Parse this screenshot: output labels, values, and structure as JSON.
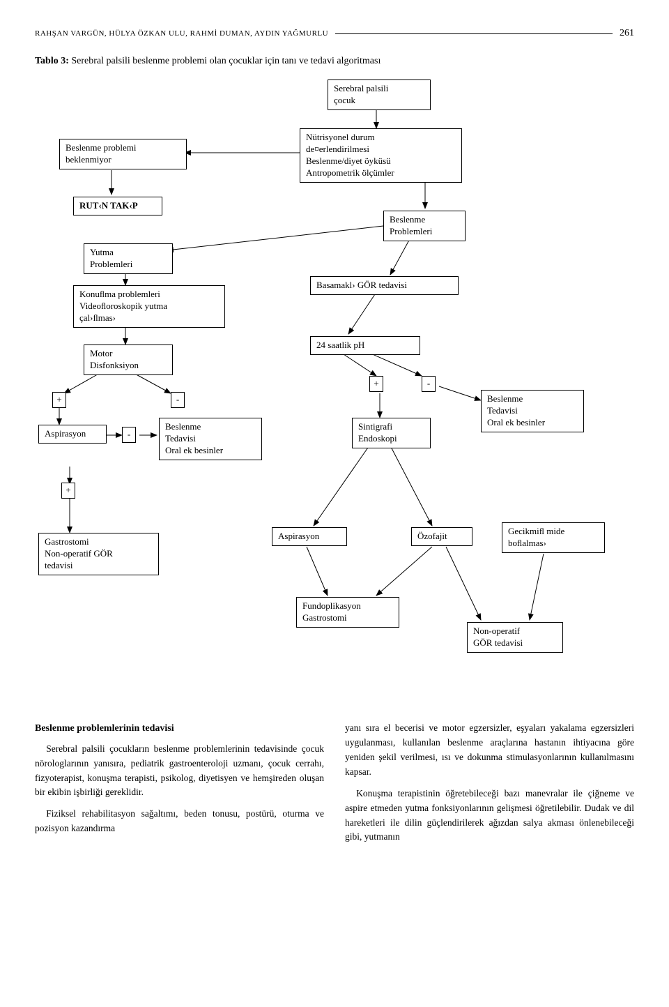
{
  "header": {
    "names": "RAHŞAN VARGÜN, HÜLYA ÖZKAN ULU, RAHMİ DUMAN, AYDIN YAĞMURLU",
    "page": "261"
  },
  "table_title_label": "Tablo 3:",
  "table_title_text": " Serebral palsili beslenme problemi olan çocuklar için tanı ve tedavi algoritması",
  "flow": {
    "cp_child": "Serebral palsili\nçocuk",
    "no_problem": "Beslenme problemi\nbeklenmiyor",
    "nutrition_eval": "Nütrisyonel durum\nde¤erlendirilmesi\nBeslenme/diyet öyküsü\nAntropometrik ölçümler",
    "routine": "RUT‹N TAK‹P",
    "feeding_problems": "Beslenme\nProblemleri",
    "swallowing": "Yutma\nProblemleri",
    "speech": "Konuﬂma problemleri\nVideoﬂoroskopik yutma\nçal›ﬂmas›",
    "stepwise": "Basamakl› GÖR tedavisi",
    "motor": "Motor\nDisfonksiyon",
    "ph24": "24 saatlik pH",
    "plus1": "+",
    "minus1": "-",
    "plus2": "+",
    "minus2": "-",
    "minus3": "-",
    "plus3": "+",
    "aspiration1": "Aspirasyon",
    "feeding_therapy1": "Beslenme\nTedavisi\nOral ek besinler",
    "sintigraphy": "Sintigrafi\nEndoskopi",
    "feeding_therapy2": "Beslenme\nTedavisi\nOral ek besinler",
    "gastrostomy1": "Gastrostomi\nNon-operatif GÖR\ntedavisi",
    "aspiration2": "Aspirasyon",
    "esophagitis": "Özofajit",
    "delayed": "Gecikmiﬂ mide\nboﬂalmas›",
    "fundoplication": "Fundoplikasyon\nGastrostomi",
    "nonoperative": "Non-operatif\nGÖR tedavisi"
  },
  "body": {
    "heading": "Beslenme problemlerinin tedavisi",
    "p1": "Serebral palsili çocukların beslenme problemlerinin tedavisinde çocuk nörologlarının yanısıra, pediatrik gastroenteroloji uzmanı, çocuk cerrahı, fizyoterapist, konuşma terapisti, psikolog, diyetisyen ve hemşireden oluşan bir ekibin işbirliği gereklidir.",
    "p2": "Fiziksel rehabilitasyon sağaltımı, beden tonusu, postürü, oturma ve pozisyon kazandırma",
    "p3": "yanı sıra el becerisi ve motor egzersizler, eşyaları yakalama egzersizleri uygulanması, kullanılan beslenme araçlarına hastanın ihtiyacına göre yeniden şekil verilmesi, ısı ve dokunma stimulasyonlarının kullanılmasını kapsar.",
    "p4": "Konuşma terapistinin öğretebileceği bazı manevralar ile çiğneme ve aspire etmeden yutma fonksiyonlarının gelişmesi öğretilebilir. Dudak ve dil hareketleri ile dilin güçlendirilerek ağızdan salya akması önlenebileceği gibi, yutmanın"
  }
}
